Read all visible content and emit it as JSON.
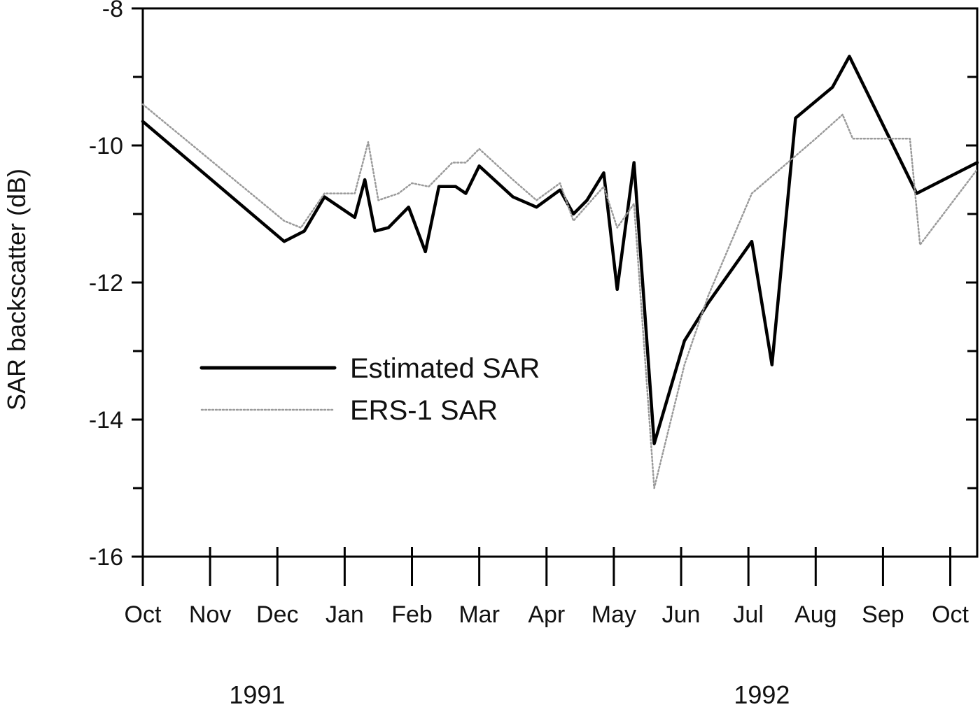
{
  "chart_data": {
    "type": "line",
    "title": "",
    "xlabel": "",
    "ylabel": "SAR backscatter (dB)",
    "ylim": [
      -16,
      -8
    ],
    "yticks": [
      -16,
      -14,
      -12,
      -10,
      -8
    ],
    "xlim": [
      0,
      12.4
    ],
    "month_labels": [
      {
        "x": 0,
        "label": "Oct"
      },
      {
        "x": 1,
        "label": "Nov"
      },
      {
        "x": 2,
        "label": "Dec"
      },
      {
        "x": 3,
        "label": "Jan"
      },
      {
        "x": 4,
        "label": "Feb"
      },
      {
        "x": 5,
        "label": "Mar"
      },
      {
        "x": 6,
        "label": "Apr"
      },
      {
        "x": 7,
        "label": "May"
      },
      {
        "x": 8,
        "label": "Jun"
      },
      {
        "x": 9,
        "label": "Jul"
      },
      {
        "x": 10,
        "label": "Aug"
      },
      {
        "x": 11,
        "label": "Sep"
      },
      {
        "x": 12,
        "label": "Oct"
      }
    ],
    "year_labels": [
      {
        "x": 1.7,
        "label": "1991"
      },
      {
        "x": 9.2,
        "label": "1992"
      }
    ],
    "legend": {
      "position": "center-left"
    },
    "grid": false,
    "series": [
      {
        "name": "Estimated SAR",
        "style": "solid",
        "color": "#000000",
        "points": [
          [
            0,
            -9.65
          ],
          [
            2.1,
            -11.4
          ],
          [
            2.4,
            -11.25
          ],
          [
            2.7,
            -10.75
          ],
          [
            3.15,
            -11.05
          ],
          [
            3.3,
            -10.5
          ],
          [
            3.45,
            -11.25
          ],
          [
            3.65,
            -11.2
          ],
          [
            3.95,
            -10.9
          ],
          [
            4.2,
            -11.55
          ],
          [
            4.4,
            -10.6
          ],
          [
            4.65,
            -10.6
          ],
          [
            4.8,
            -10.7
          ],
          [
            5.0,
            -10.3
          ],
          [
            5.5,
            -10.75
          ],
          [
            5.85,
            -10.9
          ],
          [
            6.2,
            -10.65
          ],
          [
            6.4,
            -11.0
          ],
          [
            6.6,
            -10.8
          ],
          [
            6.85,
            -10.4
          ],
          [
            7.05,
            -12.1
          ],
          [
            7.3,
            -10.25
          ],
          [
            7.6,
            -14.35
          ],
          [
            8.05,
            -12.85
          ],
          [
            8.4,
            -12.3
          ],
          [
            9.05,
            -11.4
          ],
          [
            9.35,
            -13.2
          ],
          [
            9.7,
            -9.6
          ],
          [
            10.25,
            -9.15
          ],
          [
            10.5,
            -8.7
          ],
          [
            11.5,
            -10.7
          ],
          [
            12.4,
            -10.25
          ]
        ]
      },
      {
        "name": "ERS-1 SAR",
        "style": "dotted",
        "color": "#9a9a9a",
        "points": [
          [
            0,
            -9.4
          ],
          [
            2.1,
            -11.1
          ],
          [
            2.35,
            -11.2
          ],
          [
            2.7,
            -10.7
          ],
          [
            3.15,
            -10.7
          ],
          [
            3.35,
            -9.95
          ],
          [
            3.5,
            -10.8
          ],
          [
            3.8,
            -10.7
          ],
          [
            4.0,
            -10.55
          ],
          [
            4.25,
            -10.6
          ],
          [
            4.6,
            -10.25
          ],
          [
            4.8,
            -10.25
          ],
          [
            5.0,
            -10.05
          ],
          [
            5.5,
            -10.5
          ],
          [
            5.85,
            -10.8
          ],
          [
            6.2,
            -10.55
          ],
          [
            6.4,
            -11.1
          ],
          [
            6.85,
            -10.6
          ],
          [
            7.05,
            -11.2
          ],
          [
            7.3,
            -10.85
          ],
          [
            7.6,
            -15.0
          ],
          [
            8.05,
            -13.2
          ],
          [
            8.4,
            -12.2
          ],
          [
            9.05,
            -10.7
          ],
          [
            10.0,
            -9.9
          ],
          [
            10.4,
            -9.55
          ],
          [
            10.55,
            -9.9
          ],
          [
            10.9,
            -9.9
          ],
          [
            11.4,
            -9.9
          ],
          [
            11.55,
            -11.45
          ],
          [
            12.4,
            -10.35
          ]
        ]
      }
    ]
  }
}
